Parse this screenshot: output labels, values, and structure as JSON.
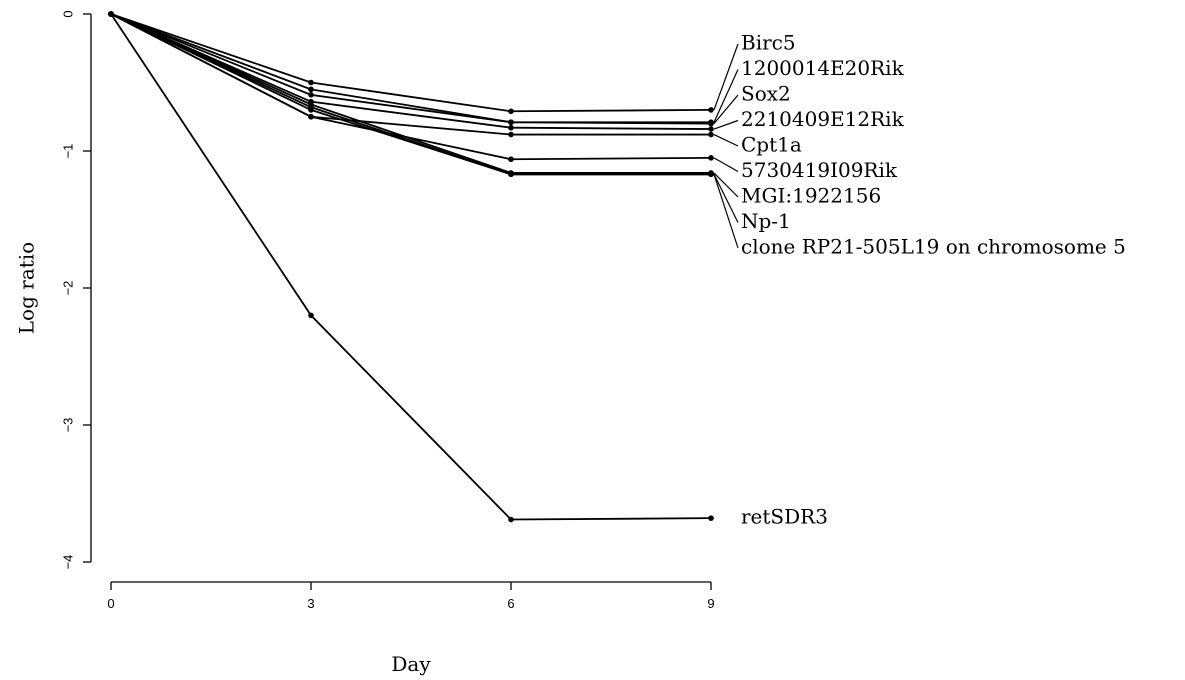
{
  "chart_data": {
    "type": "line",
    "title": "",
    "xlabel": "Day",
    "ylabel": "Log ratio",
    "x": [
      0,
      3,
      6,
      9
    ],
    "x_ticks": [
      "0",
      "3",
      "6",
      "9"
    ],
    "y_ticks": [
      "0",
      "−1",
      "−2",
      "−3",
      "−4"
    ],
    "xlim": [
      0,
      9
    ],
    "ylim": [
      -4,
      0
    ],
    "grid": false,
    "legend": "direct labels at right end of lines",
    "series": [
      {
        "name": "Birc5",
        "values": [
          0,
          -0.5,
          -0.71,
          -0.7
        ]
      },
      {
        "name": "1200014E20Rik",
        "values": [
          0,
          -0.55,
          -0.79,
          -0.79
        ]
      },
      {
        "name": "Sox2",
        "values": [
          0,
          -0.59,
          -0.79,
          -0.8
        ]
      },
      {
        "name": "2210409E12Rik",
        "values": [
          0,
          -0.64,
          -0.83,
          -0.84
        ]
      },
      {
        "name": "Cpt1a",
        "values": [
          0,
          -0.75,
          -0.88,
          -0.88
        ]
      },
      {
        "name": "5730419I09Rik",
        "values": [
          0,
          -0.75,
          -1.06,
          -1.05
        ]
      },
      {
        "name": "MGI:1922156",
        "values": [
          0,
          -0.66,
          -1.16,
          -1.16
        ]
      },
      {
        "name": "Np-1",
        "values": [
          0,
          -0.68,
          -1.17,
          -1.17
        ]
      },
      {
        "name": "clone RP21-505L19 on chromosome 5",
        "values": [
          0,
          -0.7,
          -1.17,
          -1.17
        ]
      },
      {
        "name": "retSDR3",
        "values": [
          0,
          -2.2,
          -3.69,
          -3.68
        ]
      }
    ]
  }
}
